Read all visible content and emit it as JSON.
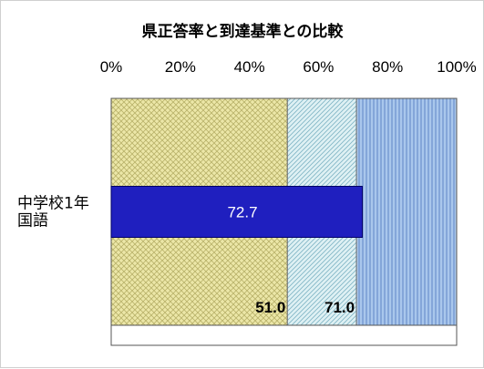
{
  "chart_data": {
    "type": "bar",
    "orientation": "horizontal",
    "title": "県正答率と到達基準との比較",
    "x_ticks": [
      "0%",
      "20%",
      "40%",
      "60%",
      "80%",
      "100%"
    ],
    "xlim": [
      0,
      100
    ],
    "categories": [
      "中学校1年\n国語"
    ],
    "series": [
      {
        "values": [
          72.7
        ],
        "color": "#1f1fbf",
        "value_labels": [
          "72.7"
        ]
      }
    ],
    "reference_bands": [
      {
        "from": 0,
        "to": 51.0,
        "color": "#e6e09a",
        "pattern": "crosshatch"
      },
      {
        "from": 51.0,
        "to": 71.0,
        "color": "#cfeaf0",
        "pattern": "diagonal"
      },
      {
        "from": 71.0,
        "to": 100,
        "color": "#9fbfe6",
        "pattern": "vertical"
      }
    ],
    "threshold_labels": [
      "51.0",
      "71.0"
    ],
    "grid": false,
    "legend": "none"
  }
}
